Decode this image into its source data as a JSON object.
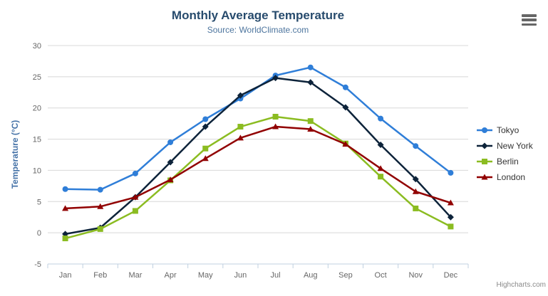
{
  "chart_data": {
    "type": "line",
    "title": "Monthly Average Temperature",
    "subtitle": "Source: WorldClimate.com",
    "xlabel": "",
    "ylabel": "Temperature (°C)",
    "ylim": [
      -5,
      30
    ],
    "yticks": [
      -5,
      0,
      5,
      10,
      15,
      20,
      25,
      30
    ],
    "grid": "horizontal",
    "legend_position": "right",
    "categories": [
      "Jan",
      "Feb",
      "Mar",
      "Apr",
      "May",
      "Jun",
      "Jul",
      "Aug",
      "Sep",
      "Oct",
      "Nov",
      "Dec"
    ],
    "series": [
      {
        "name": "Tokyo",
        "color": "#2f7ed8",
        "marker": "circle",
        "values": [
          7.0,
          6.9,
          9.5,
          14.5,
          18.2,
          21.5,
          25.2,
          26.5,
          23.3,
          18.3,
          13.9,
          9.6
        ]
      },
      {
        "name": "New York",
        "color": "#0d233a",
        "marker": "diamond",
        "values": [
          -0.2,
          0.8,
          5.7,
          11.3,
          17.0,
          22.0,
          24.8,
          24.1,
          20.1,
          14.1,
          8.6,
          2.5
        ]
      },
      {
        "name": "Berlin",
        "color": "#8bbc21",
        "marker": "square",
        "values": [
          -0.9,
          0.6,
          3.5,
          8.4,
          13.5,
          17.0,
          18.6,
          17.9,
          14.3,
          9.0,
          3.9,
          1.0
        ]
      },
      {
        "name": "London",
        "color": "#910000",
        "marker": "triangle",
        "values": [
          3.9,
          4.2,
          5.7,
          8.5,
          11.9,
          15.2,
          17.0,
          16.6,
          14.2,
          10.3,
          6.6,
          4.8
        ]
      }
    ],
    "colors": {
      "gridline": "#d8d8d8",
      "axis_line": "#c0d0e0",
      "tick_label": "#666666",
      "title": "#274b6d",
      "subtitle": "#4d759e",
      "y_axis_title": "#4572a7"
    }
  },
  "icons": {
    "context_menu": "hamburger-icon"
  },
  "credits": {
    "label": "Highcharts.com"
  }
}
